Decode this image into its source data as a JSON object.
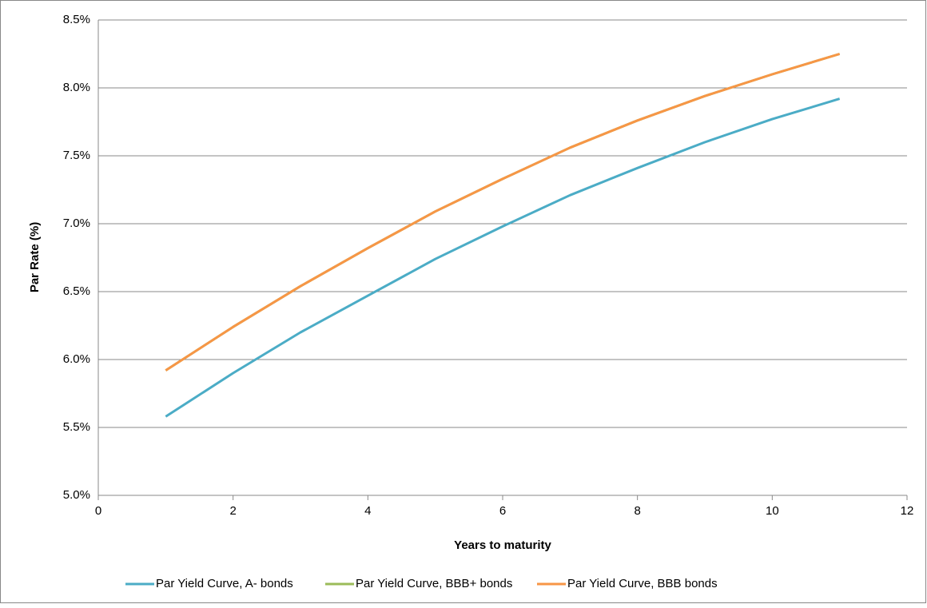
{
  "chart_data": {
    "type": "line",
    "x_label": "Years to maturity",
    "y_label": "Par Rate (%)",
    "x": [
      1,
      2,
      3,
      4,
      5,
      6,
      7,
      8,
      9,
      10,
      11
    ],
    "series": [
      {
        "name": "Par Yield Curve, A- bonds",
        "color": "#4bacc6",
        "values": [
          5.58,
          5.9,
          6.2,
          6.47,
          6.74,
          6.98,
          7.21,
          7.41,
          7.6,
          7.77,
          7.92
        ]
      },
      {
        "name": "Par Yield Curve, BBB+ bonds",
        "color": "#9bbb59",
        "values": [
          5.92,
          6.24,
          6.54,
          6.82,
          7.09,
          7.33,
          7.56,
          7.76,
          7.94,
          8.1,
          8.25
        ]
      },
      {
        "name": "Par Yield Curve, BBB bonds",
        "color": "#f79646",
        "values": [
          5.92,
          6.24,
          6.54,
          6.82,
          7.09,
          7.33,
          7.56,
          7.76,
          7.94,
          8.1,
          8.25
        ]
      }
    ],
    "xlim": [
      0,
      12
    ],
    "xticks": [
      0,
      2,
      4,
      6,
      8,
      10,
      12
    ],
    "ylim": [
      5,
      8.5
    ],
    "yticks": [
      {
        "value": 5,
        "label": "5.0%"
      },
      {
        "value": 5.5,
        "label": "5.5%"
      },
      {
        "value": 6,
        "label": "6.0%"
      },
      {
        "value": 6.5,
        "label": "6.5%"
      },
      {
        "value": 7,
        "label": "7.0%"
      },
      {
        "value": 7.5,
        "label": "7.5%"
      },
      {
        "value": 8,
        "label": "8.0%"
      },
      {
        "value": 8.5,
        "label": "8.5%"
      }
    ],
    "grid": true,
    "legend": "bottom"
  }
}
